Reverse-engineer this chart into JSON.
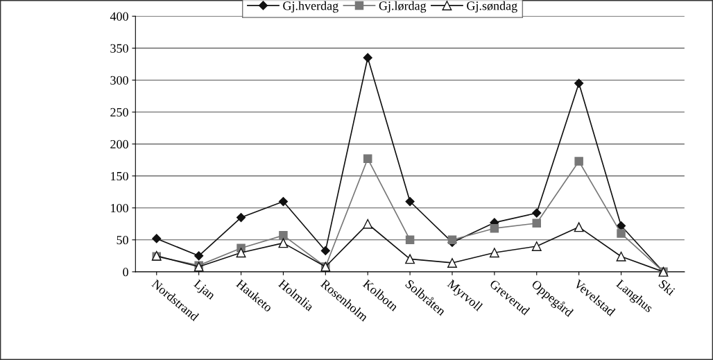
{
  "chart_data": {
    "type": "line",
    "categories": [
      "Nordstrand",
      "Ljan",
      "Hauketo",
      "Holmlia",
      "Rosenholm",
      "Kolbotn",
      "Solbråten",
      "Myrvoll",
      "Greverud",
      "Oppegård",
      "Vevelstad",
      "Langhus",
      "Ski"
    ],
    "series": [
      {
        "name": "Gj.hverdag",
        "color": "#111111",
        "marker": "diamond",
        "values": [
          52,
          25,
          85,
          110,
          33,
          335,
          110,
          46,
          77,
          92,
          295,
          72,
          0
        ]
      },
      {
        "name": "Gj.lørdag",
        "color": "#777777",
        "marker": "square",
        "values": [
          24,
          10,
          37,
          57,
          8,
          177,
          50,
          50,
          68,
          76,
          173,
          60,
          0
        ]
      },
      {
        "name": "Gj.søndag",
        "color": "#111111",
        "marker": "triangle",
        "values": [
          25,
          8,
          30,
          45,
          8,
          75,
          20,
          14,
          30,
          40,
          70,
          24,
          0
        ]
      }
    ],
    "ylim": [
      0,
      400
    ],
    "yticks": [
      0,
      50,
      100,
      150,
      200,
      250,
      300,
      350,
      400
    ],
    "grid": "y",
    "legend": "top"
  }
}
